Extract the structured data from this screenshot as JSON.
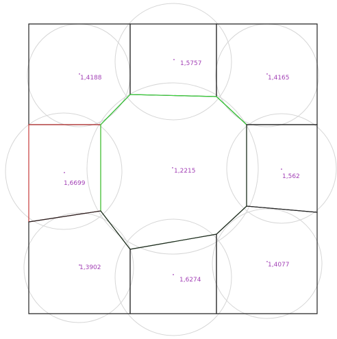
{
  "colors": {
    "background": "#ffffff",
    "circle_stroke": "#d6d6d6",
    "cell_black": "#222222",
    "cell_red": "#c43a3a",
    "cell_green": "#39d13a",
    "label": "#a23fb5"
  },
  "cells": [
    {
      "id": "top-left",
      "label": "1,4188",
      "color": "black"
    },
    {
      "id": "top-center",
      "label": "1,5757",
      "color": "black"
    },
    {
      "id": "top-right",
      "label": "1,4165",
      "color": "black"
    },
    {
      "id": "mid-left",
      "label": "1,6699",
      "color": "red"
    },
    {
      "id": "center",
      "label": "1,2215",
      "color": "green"
    },
    {
      "id": "mid-right",
      "label": "1,562",
      "color": "black"
    },
    {
      "id": "bottom-left",
      "label": "1,3902",
      "color": "black"
    },
    {
      "id": "bottom-center",
      "label": "1,6274",
      "color": "black"
    },
    {
      "id": "bottom-right",
      "label": "1,4077",
      "color": "black"
    }
  ]
}
